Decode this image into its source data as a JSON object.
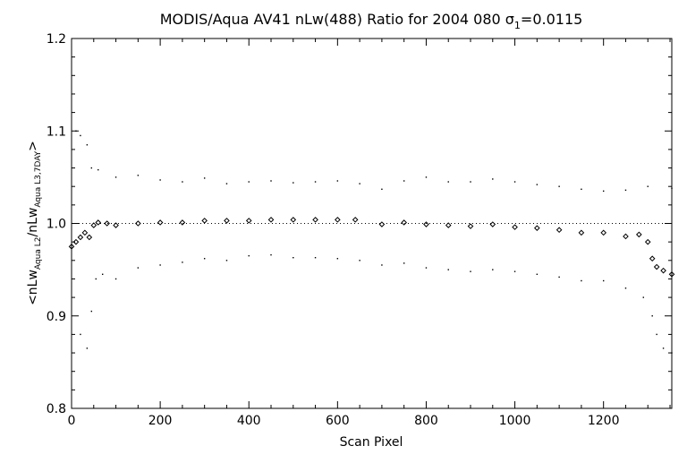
{
  "chart_data": {
    "type": "scatter",
    "title": "MODIS/Aqua AV41 nLw(488) Ratio for 2004 080 σ",
    "title_sigma_subscript": "1",
    "title_suffix": "=0.0115",
    "xlabel": "Scan Pixel",
    "ylabel": {
      "prefix": "<nLw",
      "sub1": "Aqua L2",
      "mid": "/nLw",
      "sub2": "Aqua L3,7DAY",
      "suffix": ">"
    },
    "xlim": [
      0,
      1354
    ],
    "ylim": [
      0.8,
      1.2
    ],
    "x_ticks": [
      0,
      200,
      400,
      600,
      800,
      1000,
      1200
    ],
    "x_tick_labels": [
      "0",
      "200",
      "400",
      "600",
      "800",
      "1000",
      "1200"
    ],
    "y_ticks": [
      0.8,
      0.9,
      1.0,
      1.1,
      1.2
    ],
    "y_tick_labels": [
      "0.8",
      "0.9",
      "1.0",
      "1.1",
      "1.2"
    ],
    "reference_line_y": 1.0,
    "grid": false,
    "colors": {
      "foreground": "#000000",
      "background": "#ffffff"
    },
    "series": [
      {
        "role": "mean",
        "marker": "diamond",
        "points": [
          [
            0,
            0.975
          ],
          [
            10,
            0.98
          ],
          [
            20,
            0.985
          ],
          [
            30,
            0.99
          ],
          [
            40,
            0.985
          ],
          [
            50,
            0.998
          ],
          [
            60,
            1.001
          ],
          [
            80,
            1.0
          ],
          [
            100,
            0.998
          ],
          [
            150,
            1.0
          ],
          [
            200,
            1.001
          ],
          [
            250,
            1.001
          ],
          [
            300,
            1.003
          ],
          [
            350,
            1.003
          ],
          [
            400,
            1.003
          ],
          [
            450,
            1.004
          ],
          [
            500,
            1.004
          ],
          [
            550,
            1.004
          ],
          [
            600,
            1.004
          ],
          [
            640,
            1.004
          ],
          [
            700,
            0.999
          ],
          [
            750,
            1.001
          ],
          [
            800,
            0.999
          ],
          [
            850,
            0.998
          ],
          [
            900,
            0.997
          ],
          [
            950,
            0.999
          ],
          [
            1000,
            0.996
          ],
          [
            1050,
            0.995
          ],
          [
            1100,
            0.993
          ],
          [
            1150,
            0.99
          ],
          [
            1200,
            0.99
          ],
          [
            1250,
            0.986
          ],
          [
            1280,
            0.988
          ],
          [
            1300,
            0.98
          ],
          [
            1310,
            0.962
          ],
          [
            1320,
            0.953
          ],
          [
            1335,
            0.949
          ],
          [
            1354,
            0.945
          ]
        ]
      },
      {
        "role": "upper",
        "marker": "dot",
        "points": [
          [
            10,
            1.1
          ],
          [
            20,
            1.095
          ],
          [
            35,
            1.085
          ],
          [
            45,
            1.06
          ],
          [
            60,
            1.058
          ],
          [
            100,
            1.05
          ],
          [
            150,
            1.052
          ],
          [
            200,
            1.047
          ],
          [
            250,
            1.045
          ],
          [
            300,
            1.049
          ],
          [
            350,
            1.043
          ],
          [
            400,
            1.045
          ],
          [
            450,
            1.046
          ],
          [
            500,
            1.044
          ],
          [
            550,
            1.045
          ],
          [
            600,
            1.046
          ],
          [
            650,
            1.043
          ],
          [
            700,
            1.037
          ],
          [
            750,
            1.046
          ],
          [
            800,
            1.05
          ],
          [
            850,
            1.045
          ],
          [
            900,
            1.045
          ],
          [
            950,
            1.048
          ],
          [
            1000,
            1.045
          ],
          [
            1050,
            1.042
          ],
          [
            1100,
            1.04
          ],
          [
            1150,
            1.037
          ],
          [
            1200,
            1.035
          ],
          [
            1250,
            1.036
          ],
          [
            1300,
            1.04
          ],
          [
            1354,
            1.038
          ]
        ]
      },
      {
        "role": "lower",
        "marker": "dot",
        "points": [
          [
            20,
            0.88
          ],
          [
            35,
            0.865
          ],
          [
            45,
            0.905
          ],
          [
            55,
            0.94
          ],
          [
            70,
            0.945
          ],
          [
            100,
            0.94
          ],
          [
            150,
            0.952
          ],
          [
            200,
            0.955
          ],
          [
            250,
            0.958
          ],
          [
            300,
            0.962
          ],
          [
            350,
            0.96
          ],
          [
            400,
            0.965
          ],
          [
            450,
            0.966
          ],
          [
            500,
            0.963
          ],
          [
            550,
            0.963
          ],
          [
            600,
            0.962
          ],
          [
            650,
            0.96
          ],
          [
            700,
            0.955
          ],
          [
            750,
            0.957
          ],
          [
            800,
            0.952
          ],
          [
            850,
            0.95
          ],
          [
            900,
            0.948
          ],
          [
            950,
            0.95
          ],
          [
            1000,
            0.948
          ],
          [
            1050,
            0.945
          ],
          [
            1100,
            0.942
          ],
          [
            1150,
            0.938
          ],
          [
            1200,
            0.938
          ],
          [
            1250,
            0.93
          ],
          [
            1290,
            0.92
          ],
          [
            1310,
            0.9
          ],
          [
            1320,
            0.88
          ],
          [
            1335,
            0.865
          ],
          [
            1354,
            0.86
          ]
        ]
      }
    ]
  }
}
